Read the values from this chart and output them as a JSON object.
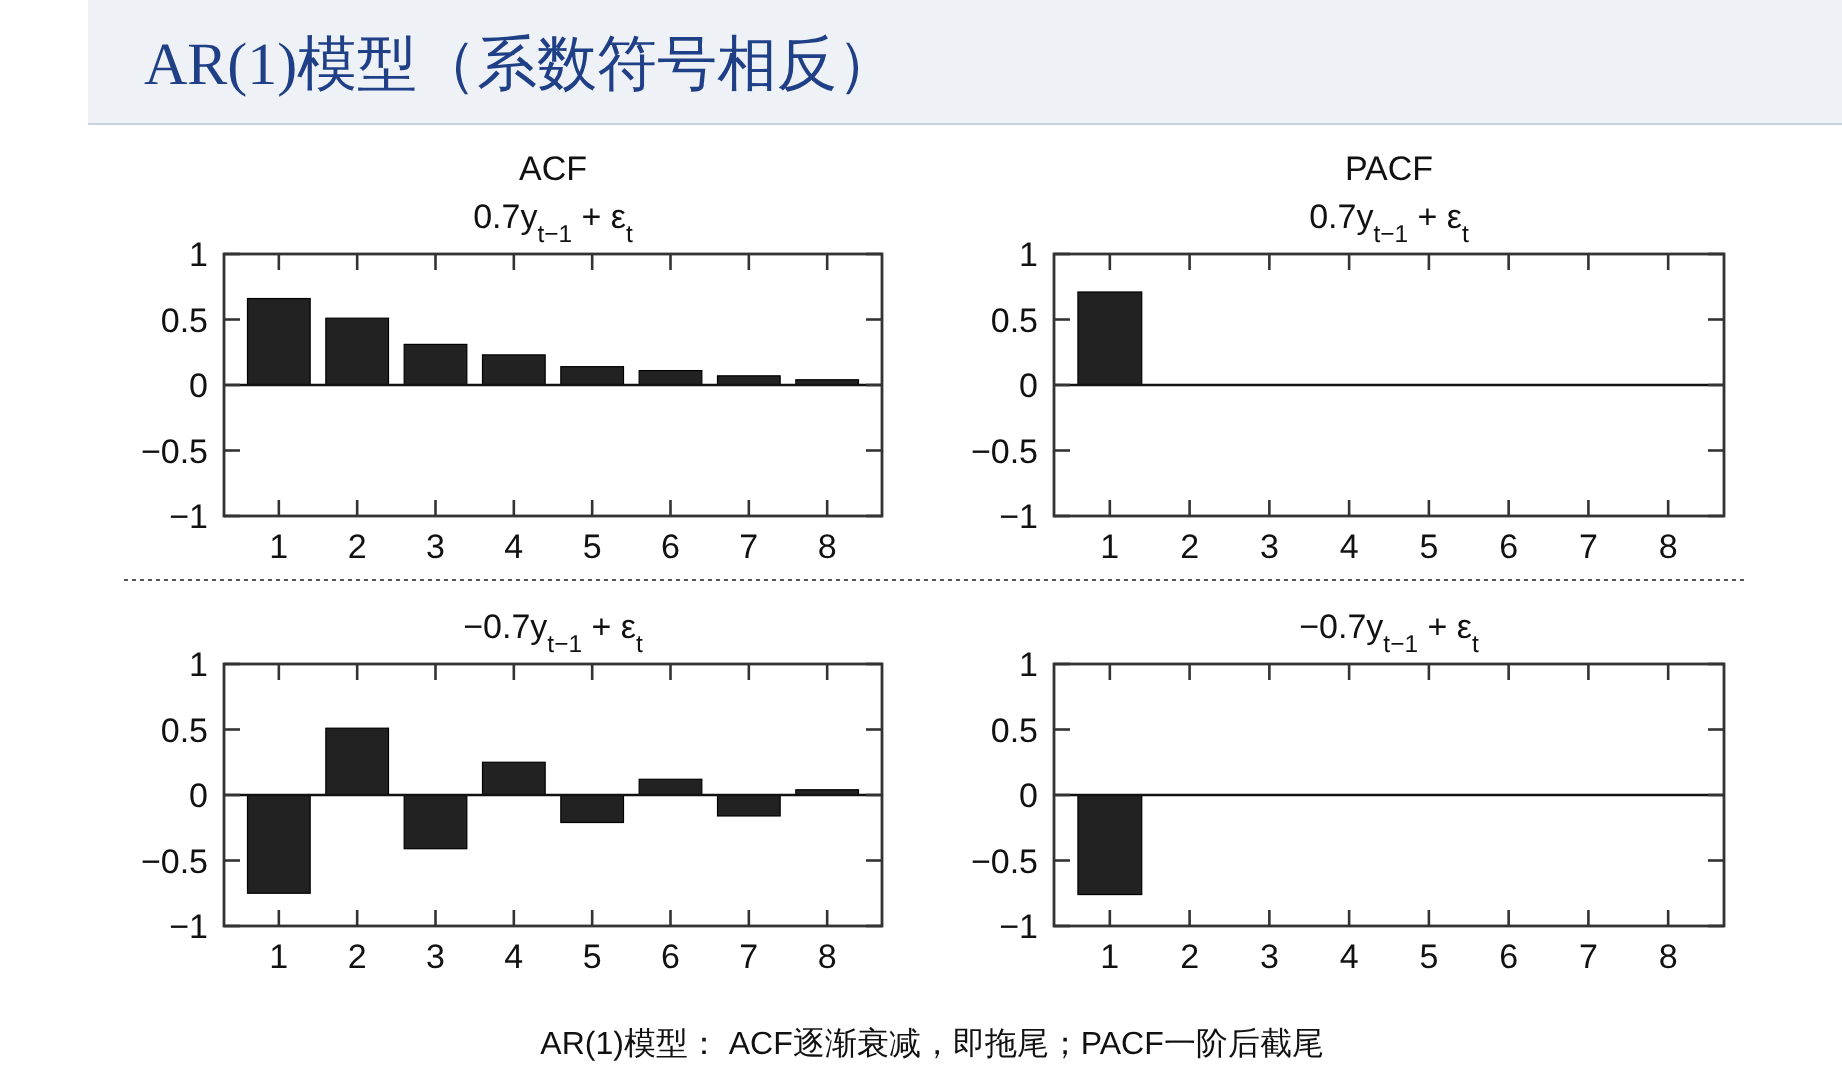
{
  "chart_data": [
    {
      "type": "other",
      "title": "AR(1)模型（系数符号相反）",
      "annotations": [
        "AR(1)模型：  ACF逐渐衰减，即拖尾；PACF一阶后截尾"
      ]
    },
    {
      "type": "bar",
      "title": "ACF",
      "subtitle": "0.7y$_{t−1}$ + ε$_{t}$",
      "categories": [
        "1",
        "2",
        "3",
        "4",
        "5",
        "6",
        "7",
        "8"
      ],
      "values": [
        0.66,
        0.51,
        0.31,
        0.23,
        0.14,
        0.11,
        0.07,
        0.04
      ],
      "color": "#222222",
      "ylim": [
        -1,
        1
      ],
      "yticks": [
        -1,
        -0.5,
        0,
        0.5,
        1
      ]
    },
    {
      "type": "bar",
      "title": "PACF",
      "subtitle": "0.7y$_{t−1}$ + ε$_{t}$",
      "categories": [
        "1",
        "2",
        "3",
        "4",
        "5",
        "6",
        "7",
        "8"
      ],
      "values": [
        0.71,
        null,
        null,
        null,
        null,
        null,
        null,
        null
      ],
      "color": "#222222",
      "ylim": [
        -1,
        1
      ],
      "yticks": [
        -1,
        -0.5,
        0,
        0.5,
        1
      ]
    },
    {
      "type": "bar",
      "title": "−0.7y$_{t−1}$ + ε$_{t}$",
      "categories": [
        "1",
        "2",
        "3",
        "4",
        "5",
        "6",
        "7",
        "8"
      ],
      "values": [
        -0.75,
        0.51,
        -0.41,
        0.25,
        -0.21,
        0.12,
        -0.16,
        0.04
      ],
      "color": "#222222",
      "ylim": [
        -1,
        1
      ],
      "yticks": [
        -1,
        -0.5,
        0,
        0.5,
        1
      ]
    },
    {
      "type": "bar",
      "title": "−0.7y$_{t−1}$ + ε$_{t}$",
      "categories": [
        "1",
        "2",
        "3",
        "4",
        "5",
        "6",
        "7",
        "8"
      ],
      "values": [
        -0.76,
        null,
        null,
        null,
        null,
        null,
        null,
        null
      ],
      "color": "#222222",
      "ylim": [
        -1,
        1
      ],
      "yticks": [
        -1,
        -0.5,
        0,
        0.5,
        1
      ]
    }
  ]
}
